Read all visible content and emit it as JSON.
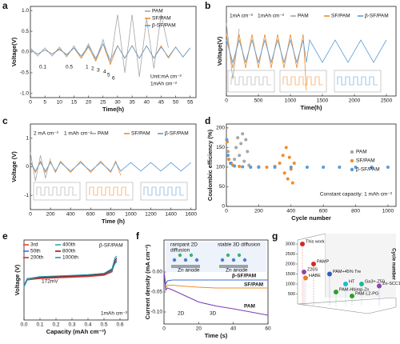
{
  "chart_data": [
    {
      "type": "line",
      "label": "a",
      "xlabel": "Time(h)",
      "ylabel": "Voltage(V)",
      "xlim": [
        0,
        57
      ],
      "xticks": [
        0,
        5,
        10,
        15,
        20,
        25,
        30,
        35,
        40,
        45,
        50,
        55
      ],
      "ylim": [
        -1.1,
        1.1
      ],
      "yticks": [
        {
          "value": -1,
          "label": "-1.0"
        },
        -0.5,
        {
          "value": 0,
          "label": "0.0"
        },
        0.5,
        {
          "value": 1,
          "label": "1.0"
        }
      ],
      "x": [
        0,
        2.5,
        5,
        7.5,
        10,
        12.5,
        15,
        17.5,
        20,
        22.5,
        25,
        27.5,
        30,
        32.5,
        35,
        37.5,
        40,
        42.5,
        45,
        47.5,
        50,
        52.5,
        55
      ],
      "series": [
        {
          "name": "PAM",
          "color": "#a6a6a6",
          "values": [
            0.1,
            -0.1,
            0.1,
            -0.1,
            0.12,
            -0.12,
            0.15,
            -0.15,
            0.2,
            -0.2,
            0.3,
            -0.3,
            0.9,
            -0.5,
            0.9,
            -0.6,
            0.8,
            -0.4,
            0.9,
            0.1,
            null,
            null,
            null
          ]
        },
        {
          "name": "SF/PAM",
          "color": "#f28c28",
          "values": [
            0.05,
            -0.05,
            0.05,
            -0.05,
            0.08,
            -0.08,
            0.1,
            -0.15,
            0.12,
            -0.22,
            0.2,
            -0.3,
            0.15,
            -0.15,
            0.15,
            -0.15,
            0.15,
            -0.15,
            0.15,
            -0.15,
            0.12,
            -0.12,
            0.1
          ]
        },
        {
          "name": "β-SF/PAM",
          "color": "#5b9bd5",
          "values": [
            0.05,
            -0.05,
            0.05,
            -0.05,
            0.06,
            -0.06,
            0.1,
            -0.1,
            0.15,
            -0.15,
            0.2,
            -0.2,
            0.15,
            -0.15,
            0.15,
            -0.15,
            0.15,
            -0.15,
            0.12,
            -0.12,
            0.12,
            -0.12,
            0.1
          ]
        }
      ],
      "annotations": [
        "0.1",
        "0.5",
        "1",
        "2",
        "3",
        "4",
        "5",
        "6",
        "Unit:mA cm⁻²",
        "1mAh cm⁻²"
      ]
    },
    {
      "type": "line",
      "label": "b",
      "xlabel": "Time(h)",
      "ylabel": "Voltage(V)",
      "xlim": [
        0,
        2650
      ],
      "xticks": [
        0,
        500,
        1000,
        1500,
        2000,
        2500
      ],
      "ylim": [
        -0.4,
        0.4
      ],
      "x": [
        0,
        100,
        200,
        300,
        400,
        500,
        600,
        700,
        800,
        900,
        1000,
        1100,
        1200,
        1250,
        1300,
        1500,
        1700,
        1900,
        2100,
        2300,
        2500
      ],
      "series": [
        {
          "name": "PAM",
          "color": "#a6a6a6",
          "values": [
            0.25,
            -0.25,
            0.2,
            null,
            null,
            null,
            null,
            null,
            null,
            null,
            null,
            null,
            null,
            null,
            null,
            null,
            null,
            null,
            null,
            null,
            null
          ]
        },
        {
          "name": "SF/PAM",
          "color": "#f28c28",
          "values": [
            0.15,
            -0.15,
            0.15,
            -0.15,
            0.15,
            -0.15,
            0.15,
            -0.15,
            0.15,
            -0.15,
            0.15,
            -0.15,
            0.15,
            -0.35,
            null,
            null,
            null,
            null,
            null,
            null,
            null
          ]
        },
        {
          "name": "β-SF/PAM",
          "color": "#5b9bd5",
          "values": [
            0.1,
            -0.1,
            0.1,
            -0.1,
            0.1,
            -0.1,
            0.1,
            -0.1,
            0.1,
            -0.1,
            0.1,
            -0.1,
            0.1,
            -0.1,
            0.1,
            -0.1,
            0.1,
            -0.1,
            0.1,
            -0.1,
            0.1
          ]
        }
      ],
      "annotations": [
        "1mA cm⁻²",
        "1mAh cm⁻²"
      ]
    },
    {
      "type": "line",
      "label": "c",
      "xlabel": "Time (h)",
      "ylabel": "Voltage (V)",
      "xlim": [
        0,
        1650
      ],
      "xticks": [
        0,
        200,
        400,
        600,
        800,
        1000,
        1200,
        1400,
        1600
      ],
      "ylim": [
        -1.5,
        1.5
      ],
      "yticks": [
        -1,
        0,
        1
      ],
      "x": [
        0,
        50,
        100,
        150,
        200,
        250,
        300,
        400,
        500,
        600,
        700,
        800,
        850,
        900,
        1000,
        1100,
        1200,
        1300,
        1400,
        1500,
        1600
      ],
      "series": [
        {
          "name": "PAM",
          "color": "#a6a6a6",
          "values": [
            0.5,
            -0.5,
            0.4,
            -0.4,
            0.3,
            null,
            null,
            null,
            null,
            null,
            null,
            null,
            null,
            null,
            null,
            null,
            null,
            null,
            null,
            null,
            null
          ]
        },
        {
          "name": "SF/PAM",
          "color": "#f28c28",
          "values": [
            0.2,
            -0.2,
            0.2,
            -0.2,
            0.2,
            -0.2,
            0.2,
            -0.2,
            0.2,
            -0.2,
            0.2,
            -0.2,
            0.2,
            -0.3,
            null,
            null,
            null,
            null,
            null,
            null,
            null
          ]
        },
        {
          "name": "β-SF/PAM",
          "color": "#5b9bd5",
          "values": [
            0.15,
            -0.15,
            0.15,
            -0.15,
            0.15,
            -0.15,
            0.15,
            -0.15,
            0.15,
            -0.15,
            0.15,
            -0.15,
            0.15,
            -0.15,
            0.15,
            -0.15,
            0.15,
            -0.15,
            0.15,
            -0.15,
            0.15
          ]
        }
      ],
      "annotations": [
        "2 mA cm⁻²",
        "1 mAh cm⁻²"
      ]
    },
    {
      "type": "scatter",
      "label": "d",
      "xlabel": "Cycle number",
      "ylabel": "Coulombic efficiency (%)",
      "xlim": [
        0,
        1050
      ],
      "xticks": [
        0,
        200,
        400,
        600,
        800,
        1000
      ],
      "ylim": [
        0,
        210
      ],
      "yticks": [
        0,
        50,
        100,
        150,
        200
      ],
      "series": [
        {
          "name": "PAM",
          "color": "#a6a6a6",
          "x": [
            10,
            30,
            50,
            60,
            70,
            80,
            90,
            100,
            110,
            120,
            130,
            140
          ],
          "values": [
            140,
            110,
            120,
            150,
            175,
            130,
            160,
            185,
            115,
            170,
            140,
            105
          ]
        },
        {
          "name": "SF/PAM",
          "color": "#f28c28",
          "x": [
            5,
            15,
            40,
            80,
            150,
            200,
            250,
            300,
            330,
            350,
            360,
            370,
            380,
            390,
            400,
            410,
            420
          ],
          "values": [
            165,
            120,
            105,
            102,
            100,
            101,
            100,
            102,
            110,
            130,
            85,
            150,
            70,
            125,
            95,
            60,
            110
          ]
        },
        {
          "name": "β-SF/PAM",
          "color": "#5b9bd5",
          "x": [
            2,
            10,
            25,
            50,
            100,
            150,
            200,
            300,
            400,
            500,
            600,
            700,
            800,
            900,
            1000
          ],
          "values": [
            170,
            130,
            110,
            103,
            101,
            100,
            100,
            100,
            100,
            100,
            100,
            100,
            100,
            100,
            100
          ]
        }
      ],
      "annotations": [
        "Constant capacity: 1 mAh cm⁻²"
      ]
    },
    {
      "type": "line",
      "label": "e",
      "xlabel": "Capacity (mAh cm⁻²)",
      "ylabel": "Voltage (V)",
      "xlim": [
        0,
        0.65
      ],
      "xticks": [
        {
          "value": 0,
          "label": "0.0"
        },
        0.1,
        0.2,
        0.3,
        0.4,
        0.5,
        0.6
      ],
      "ylim": [
        -0.6,
        0.6
      ],
      "x": [
        0,
        0.02,
        0.1,
        0.2,
        0.3,
        0.4,
        0.5,
        0.55,
        0.57,
        0.58
      ],
      "series": [
        {
          "name": "3rd",
          "color": "#e8412c",
          "values": [
            -0.1,
            0.0,
            0.02,
            0.03,
            0.04,
            0.05,
            0.07,
            0.12,
            0.3,
            0.32
          ]
        },
        {
          "name": "50th",
          "color": "#3a6fd8",
          "values": [
            -0.1,
            0.0,
            0.03,
            0.04,
            0.05,
            0.06,
            0.08,
            0.13,
            0.28,
            0.3
          ]
        },
        {
          "name": "200th",
          "color": "#c0392b",
          "values": [
            -0.09,
            0.01,
            0.03,
            0.04,
            0.05,
            0.06,
            0.08,
            0.14,
            0.26,
            0.28
          ]
        },
        {
          "name": "400th",
          "color": "#2bb0a0",
          "values": [
            -0.09,
            0.01,
            0.04,
            0.05,
            0.06,
            0.07,
            0.09,
            0.15,
            0.25,
            0.27
          ]
        },
        {
          "name": "800th",
          "color": "#8b1a1a",
          "values": [
            -0.08,
            0.02,
            0.04,
            0.05,
            0.06,
            0.07,
            0.09,
            0.16,
            0.3,
            0.33
          ]
        },
        {
          "name": "1000th",
          "color": "#1f9bb5",
          "values": [
            -0.08,
            0.02,
            0.05,
            0.06,
            0.07,
            0.08,
            0.1,
            0.17,
            0.34,
            0.36
          ]
        }
      ],
      "annotations": [
        "β-SF/PAM",
        "172mV",
        "1mAh cm⁻²"
      ]
    },
    {
      "type": "line",
      "label": "f",
      "xlabel": "Time (s)",
      "ylabel": "Current density (mA cm⁻²)",
      "xlim": [
        0,
        60
      ],
      "xticks": [
        0,
        20,
        40,
        60
      ],
      "ylim": [
        -0.13,
        0.08
      ],
      "yticks": [
        {
          "value": 0,
          "label": "0.00"
        },
        -0.05,
        {
          "value": -0.1,
          "label": "-0.10"
        }
      ],
      "x": [
        0,
        1,
        2,
        5,
        10,
        20,
        30,
        40,
        50,
        60
      ],
      "series": [
        {
          "name": "β-SF/PAM",
          "color": "#3a6fd8",
          "values": [
            0,
            -0.03,
            -0.022,
            -0.02,
            -0.02,
            -0.02,
            -0.02,
            -0.02,
            -0.02,
            -0.02
          ]
        },
        {
          "name": "SF/PAM",
          "color": "#f28c28",
          "values": [
            0,
            -0.04,
            -0.033,
            -0.033,
            -0.035,
            -0.038,
            -0.04,
            -0.04,
            -0.04,
            -0.04
          ]
        },
        {
          "name": "PAM",
          "color": "#7b3fb5",
          "values": [
            0,
            -0.045,
            -0.04,
            -0.045,
            -0.055,
            -0.075,
            -0.085,
            -0.092,
            -0.1,
            -0.108
          ]
        }
      ],
      "annotations": [
        "rampant 2D",
        "diffusion",
        "stable 3D  diffusion",
        "Zn anode",
        "Zn anode",
        "2D",
        "3D"
      ]
    },
    {
      "type": "scatter3d",
      "label": "g",
      "ylabel": "Cycle number",
      "ylim": [
        0,
        3200
      ],
      "yticks": [
        500,
        1000,
        1500,
        2000,
        2500,
        3000
      ],
      "categories": [
        "This work",
        "PAMP",
        "Z20S",
        "HABE",
        "PAM+45% Tre",
        "HT",
        "Ga3+-Z50",
        "Zn-SCC1",
        "PAM-Hbimp-Zn",
        "PAM-L2-PG"
      ],
      "values": [
        3000,
        2000,
        1600,
        1300,
        1500,
        1000,
        1000,
        900,
        600,
        400
      ],
      "colors": [
        "#d62728",
        "#d62728",
        "#8e44ad",
        "#e67e22",
        "#2e5cb8",
        "#17becf",
        "#1abc9c",
        "#8e44ad",
        "#2ca02c",
        "#2ca02c"
      ]
    }
  ]
}
